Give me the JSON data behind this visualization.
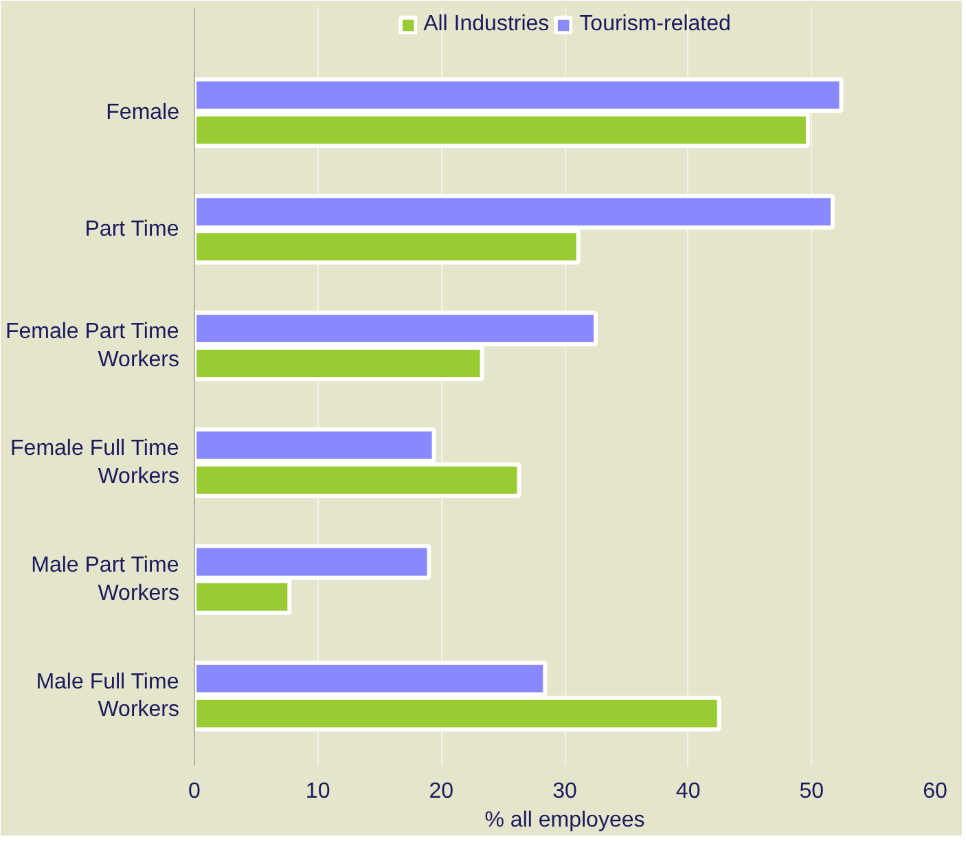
{
  "chart_data": {
    "type": "bar",
    "orientation": "horizontal",
    "xlabel": "% all employees",
    "categories": [
      "Female",
      "Part Time",
      "Female Part Time Workers",
      "Female Full Time Workers",
      "Male Part Time Workers",
      "Male Full Time Workers"
    ],
    "series": [
      {
        "name": "All Industries",
        "color": "#99cc33",
        "values": [
          49.7,
          31.1,
          23.3,
          26.3,
          7.7,
          42.5
        ]
      },
      {
        "name": "Tourism-related",
        "color": "#8888ff",
        "values": [
          52.4,
          51.7,
          32.5,
          19.4,
          19.0,
          28.4
        ]
      }
    ],
    "xlim": [
      0,
      60
    ],
    "xticks": [
      0,
      10,
      20,
      30,
      40,
      50,
      60
    ],
    "grid": "x",
    "legend": "top"
  }
}
